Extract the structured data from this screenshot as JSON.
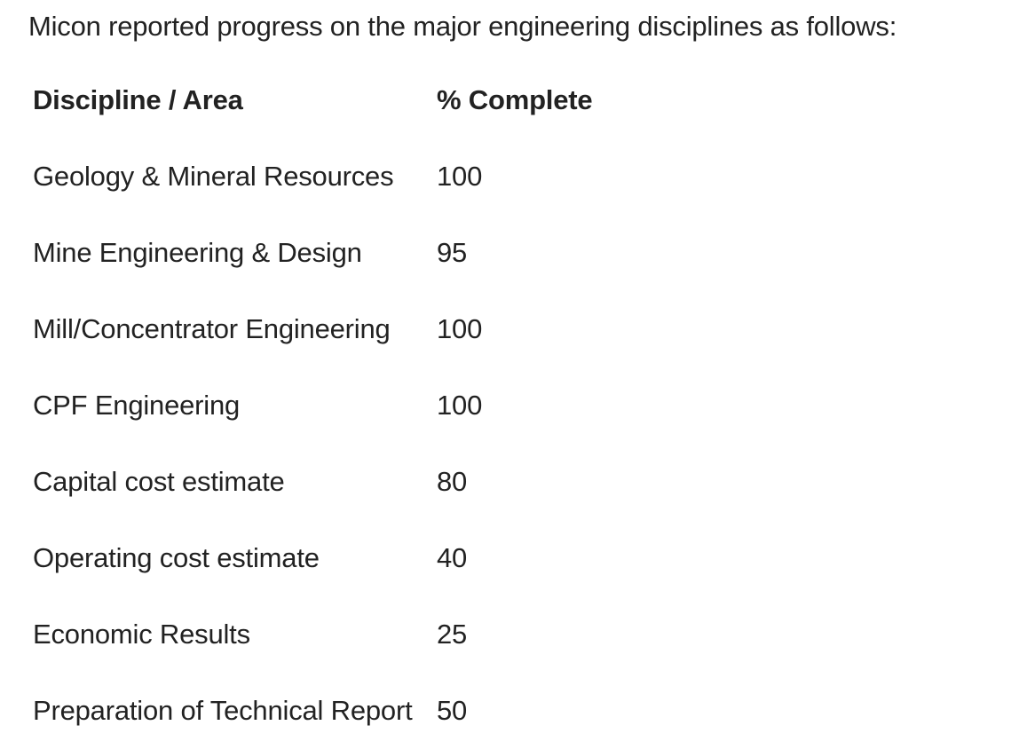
{
  "intro": "Micon reported progress on the major engineering disciplines as follows:",
  "table": {
    "headers": {
      "discipline": "Discipline / Area",
      "percent": "% Complete"
    },
    "rows": [
      {
        "discipline": "Geology & Mineral Resources",
        "percent": "100"
      },
      {
        "discipline": "Mine Engineering & Design",
        "percent": "95"
      },
      {
        "discipline": "Mill/Concentrator Engineering",
        "percent": "100"
      },
      {
        "discipline": "CPF Engineering",
        "percent": "100"
      },
      {
        "discipline": "Capital cost estimate",
        "percent": "80"
      },
      {
        "discipline": "Operating cost estimate",
        "percent": "40"
      },
      {
        "discipline": "Economic Results",
        "percent": "25"
      },
      {
        "discipline": "Preparation of Technical Report",
        "percent": "50"
      }
    ]
  }
}
